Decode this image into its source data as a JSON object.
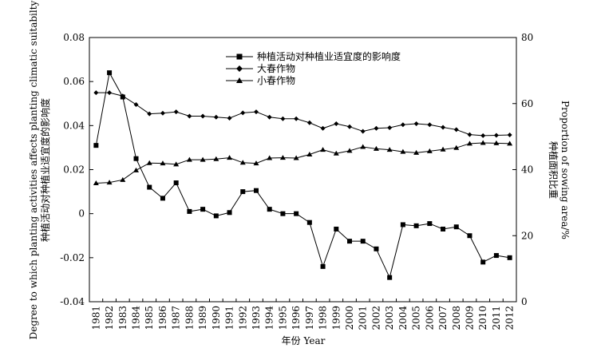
{
  "chart_data": {
    "type": "line",
    "x": [
      1981,
      1982,
      1983,
      1984,
      1985,
      1986,
      1987,
      1988,
      1989,
      1990,
      1991,
      1992,
      1993,
      1994,
      1995,
      1996,
      1997,
      1998,
      1999,
      2000,
      2001,
      2002,
      2003,
      2004,
      2005,
      2006,
      2007,
      2008,
      2009,
      2010,
      2011,
      2012
    ],
    "xlabel": "年份 Year",
    "ylabel_left_cn": "种植活动对种植业适宜度的影响度",
    "ylabel_left_en": "Degree to which planting activities affects planting climatic suitabilty",
    "ylabel_right_cn": "种植面积比重",
    "ylabel_right_en": "Proportion of sowing area/%",
    "ylim_left": [
      -0.04,
      0.08
    ],
    "yticks_left": [
      "0.08",
      "0.06",
      "0.04",
      "0.02",
      "0",
      "-0.02",
      "-0.04"
    ],
    "ylim_right": [
      0,
      80
    ],
    "yticks_right": [
      "80",
      "60",
      "40",
      "20",
      "0"
    ],
    "grid": false,
    "legend_position": "top-center",
    "series": [
      {
        "name": "种植活动对种植业适宜度的影响度",
        "axis": "left",
        "marker": "square",
        "values": [
          0.031,
          0.064,
          0.053,
          0.025,
          0.012,
          0.007,
          0.014,
          0.001,
          0.002,
          -0.001,
          0.0005,
          0.01,
          0.0105,
          0.002,
          0.0,
          0.0,
          -0.004,
          -0.024,
          -0.007,
          -0.0125,
          -0.0125,
          -0.016,
          -0.029,
          -0.005,
          -0.0055,
          -0.0045,
          -0.007,
          -0.006,
          -0.01,
          -0.022,
          -0.019,
          -0.02
        ]
      },
      {
        "name": "大春作物",
        "axis": "right",
        "marker": "diamond",
        "values": [
          63.3,
          63.3,
          62.3,
          59.7,
          56.9,
          57.1,
          57.5,
          56.2,
          56.2,
          55.9,
          55.6,
          57.2,
          57.5,
          55.9,
          55.4,
          55.4,
          54.2,
          52.5,
          53.9,
          53.0,
          51.6,
          52.5,
          52.7,
          53.6,
          53.9,
          53.6,
          52.8,
          52.1,
          50.6,
          50.3,
          50.4,
          50.5
        ]
      },
      {
        "name": "小春作物",
        "axis": "right",
        "marker": "triangle",
        "values": [
          35.9,
          36.1,
          36.9,
          39.8,
          42.0,
          41.9,
          41.6,
          43.0,
          43.0,
          43.2,
          43.6,
          42.1,
          41.9,
          43.5,
          43.6,
          43.5,
          44.6,
          46.0,
          44.9,
          45.7,
          46.9,
          46.3,
          46.0,
          45.4,
          45.1,
          45.6,
          46.1,
          46.6,
          47.9,
          48.1,
          48.0,
          47.9
        ]
      }
    ]
  }
}
